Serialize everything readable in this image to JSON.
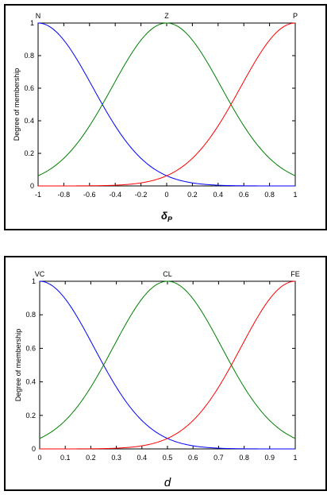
{
  "chart_data": [
    {
      "type": "line",
      "xlabel": "δP",
      "ylabel": "Degree of membership",
      "xlim": [
        -1,
        1
      ],
      "ylim": [
        0,
        1
      ],
      "x_ticks": [
        "-1",
        "-0.8",
        "-0.6",
        "-0.4",
        "-0.2",
        "0",
        "0.2",
        "0.4",
        "0.6",
        "0.8",
        "1"
      ],
      "y_ticks": [
        "0",
        "0.2",
        "0.4",
        "0.6",
        "0.8",
        "1"
      ],
      "x_tick_values": [
        -1,
        -0.8,
        -0.6,
        -0.4,
        -0.2,
        0,
        0.2,
        0.4,
        0.6,
        0.8,
        1
      ],
      "y_tick_values": [
        0,
        0.2,
        0.4,
        0.6,
        0.8,
        1
      ],
      "grid": false,
      "series": [
        {
          "name": "N",
          "color": "#0000ff",
          "shape": "gauss",
          "center": -1,
          "sigma": 0.4247
        },
        {
          "name": "Z",
          "color": "#008000",
          "shape": "gauss",
          "center": 0,
          "sigma": 0.4247
        },
        {
          "name": "P",
          "color": "#ff0000",
          "shape": "gauss",
          "center": 1,
          "sigma": 0.4247
        }
      ]
    },
    {
      "type": "line",
      "xlabel": "d",
      "ylabel": "Degree of membership",
      "xlim": [
        0,
        1
      ],
      "ylim": [
        0,
        1
      ],
      "x_ticks": [
        "0",
        "0.1",
        "0.2",
        "0.3",
        "0.4",
        "0.5",
        "0.6",
        "0.7",
        "0.8",
        "0.9",
        "1"
      ],
      "y_ticks": [
        "0",
        "0.2",
        "0.4",
        "0.6",
        "0.8",
        "1"
      ],
      "x_tick_values": [
        0,
        0.1,
        0.2,
        0.3,
        0.4,
        0.5,
        0.6,
        0.7,
        0.8,
        0.9,
        1
      ],
      "y_tick_values": [
        0,
        0.2,
        0.4,
        0.6,
        0.8,
        1
      ],
      "grid": false,
      "series": [
        {
          "name": "VC",
          "color": "#0000ff",
          "shape": "gauss",
          "center": 0,
          "sigma": 0.2123
        },
        {
          "name": "CL",
          "color": "#008000",
          "shape": "gauss",
          "center": 0.5,
          "sigma": 0.2123
        },
        {
          "name": "FE",
          "color": "#ff0000",
          "shape": "gauss",
          "center": 1,
          "sigma": 0.2123
        }
      ]
    }
  ]
}
